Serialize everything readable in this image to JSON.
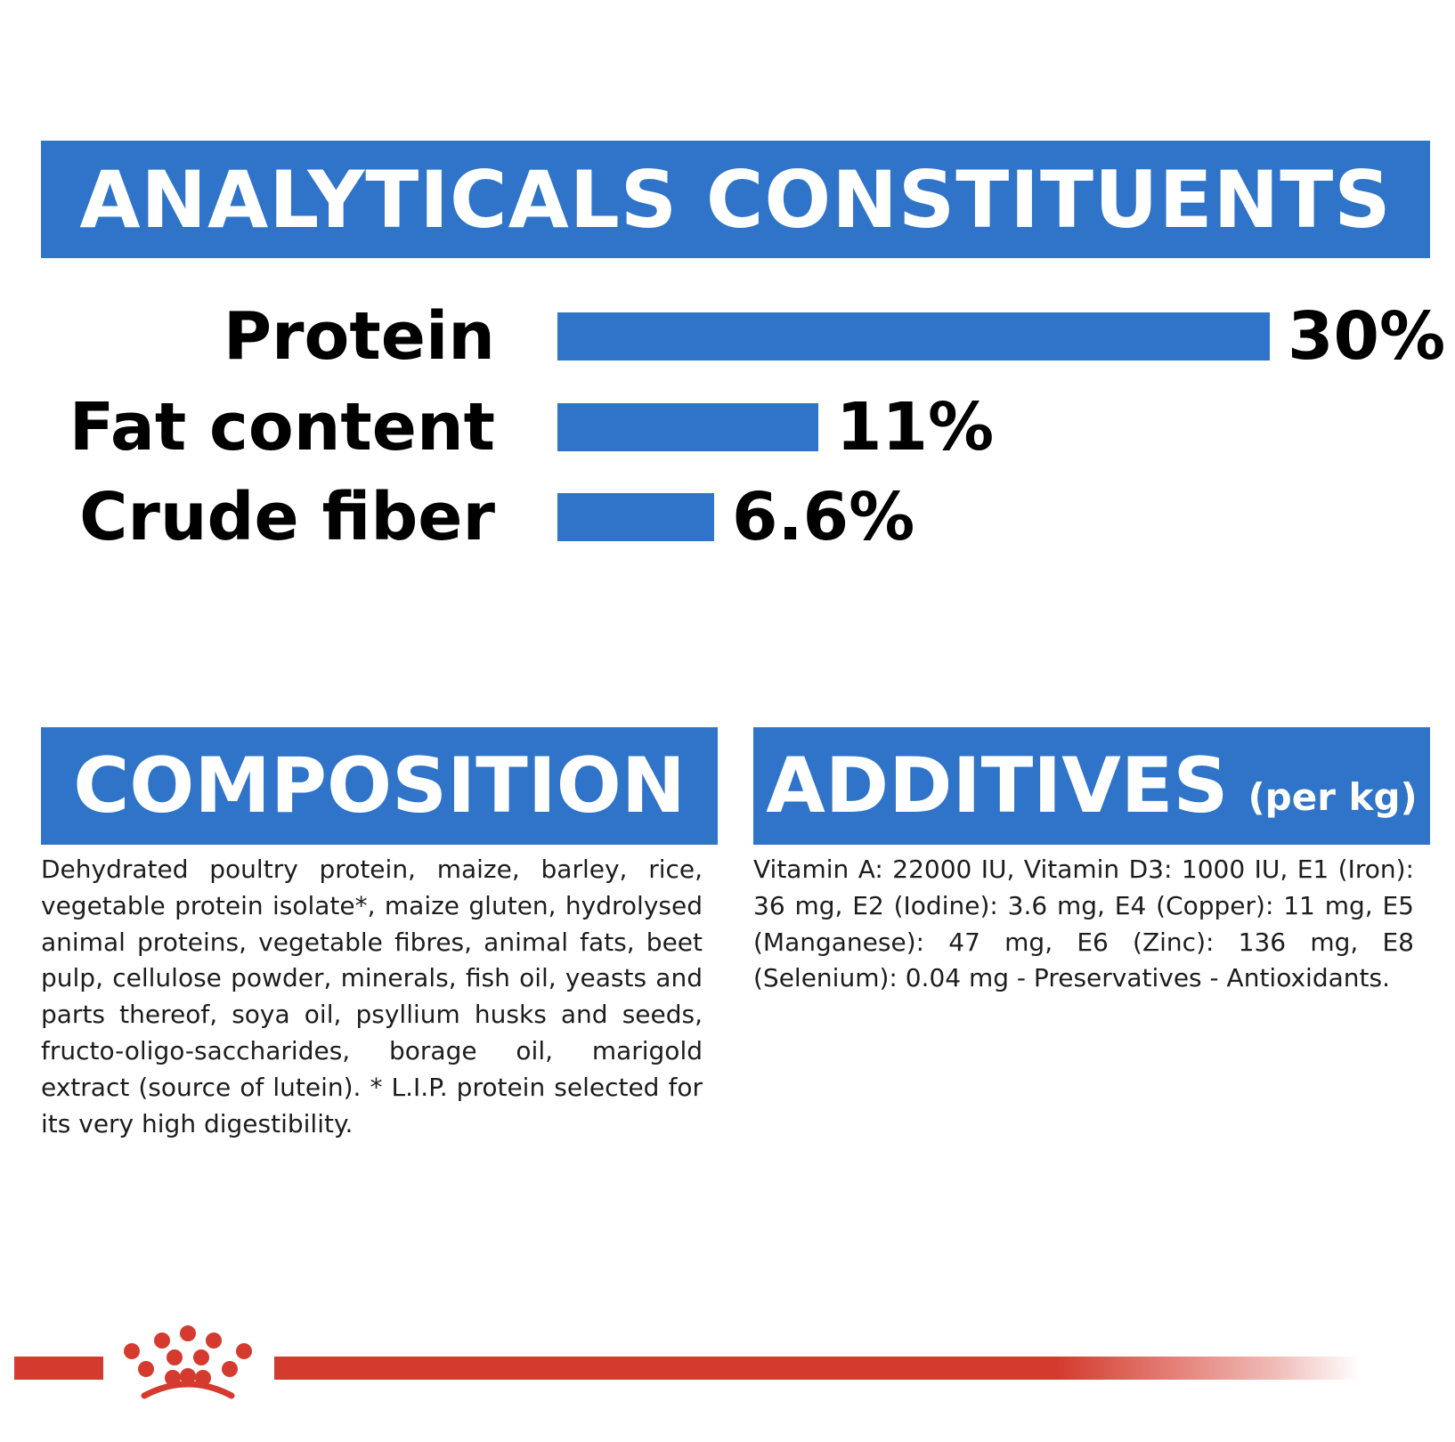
{
  "header": {
    "analytical_title": "ANALYTICALS CONSTITUENTS",
    "composition_title": "COMPOSITION",
    "additives_title": "ADDITIVES",
    "additives_suffix": "(per kg)"
  },
  "chart_data": {
    "type": "bar",
    "orientation": "horizontal",
    "categories": [
      "Protein",
      "Fat content",
      "Crude fiber"
    ],
    "values": [
      30,
      11,
      6.6
    ],
    "value_labels": [
      "30%",
      "11%",
      "6.6%"
    ],
    "title": "ANALYTICALS CONSTITUENTS",
    "xlim": [
      0,
      30
    ],
    "grid": false,
    "bar_color": "#2f74c8"
  },
  "composition": {
    "text": "Dehydrated poultry protein, maize, barley, rice, vegetable protein isolate*, maize gluten, hydrolysed animal proteins, vegetable fibres, animal fats, beet pulp, cellulose powder, minerals, fish oil, yeasts and parts thereof, soya oil, psyllium husks and seeds, fructo-oligo-saccharides, borage oil, marigold extract (source of lutein). * L.I.P. protein selected for its very high digestibility."
  },
  "additives": {
    "text": "Vitamin A: 22000 IU, Vitamin D3: 1000 IU, E1 (Iron): 36 mg, E2 (Iodine): 3.6 mg, E4 (Copper): 11 mg, E5 (Manganese): 47 mg, E6 (Zinc): 136 mg, E8 (Selenium): 0.04 mg - Preservatives - Antioxidants."
  },
  "colors": {
    "accent_blue": "#2f74c8",
    "brand_red": "#d43b2e"
  },
  "footer": {
    "logo_icon": "royal-canin-crown-icon"
  }
}
